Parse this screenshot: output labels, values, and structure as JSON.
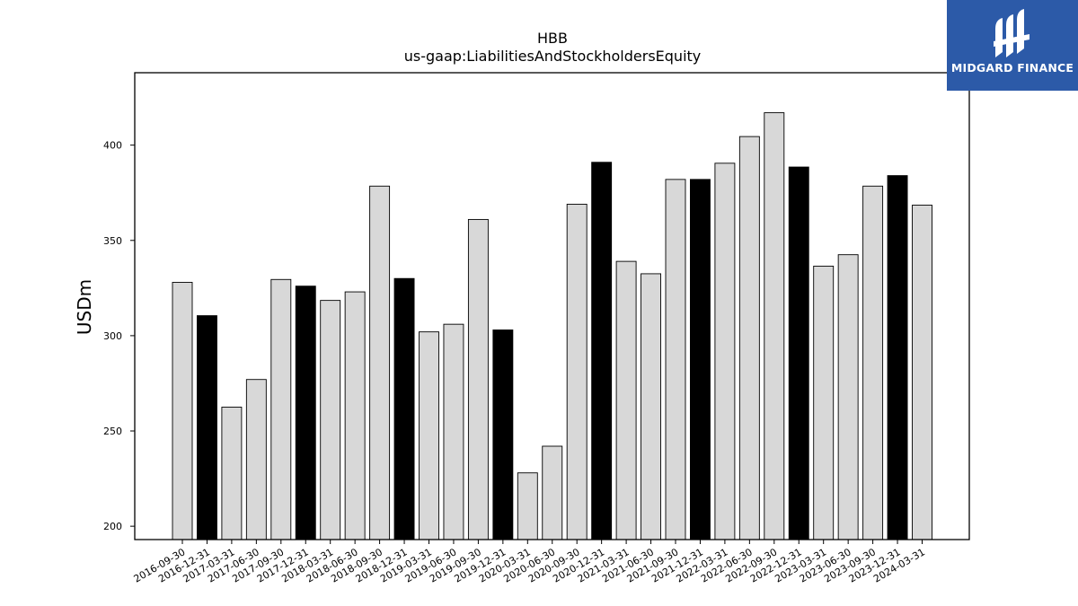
{
  "chart_data": {
    "type": "bar",
    "title": "HBB",
    "subtitle": "us-gaap:LiabilitiesAndStockholdersEquity",
    "xlabel": "",
    "ylabel": "USDm",
    "ylim": [
      193,
      438
    ],
    "yticks": [
      200,
      250,
      300,
      350,
      400
    ],
    "grid": false,
    "categories": [
      "2016-09-30",
      "2016-12-31",
      "2017-03-31",
      "2017-06-30",
      "2017-09-30",
      "2017-12-31",
      "2018-03-31",
      "2018-06-30",
      "2018-09-30",
      "2018-12-31",
      "2019-03-31",
      "2019-06-30",
      "2019-09-30",
      "2019-12-31",
      "2020-03-31",
      "2020-06-30",
      "2020-09-30",
      "2020-12-31",
      "2021-03-31",
      "2021-06-30",
      "2021-09-30",
      "2021-12-31",
      "2022-03-31",
      "2022-06-30",
      "2022-09-30",
      "2022-12-31",
      "2023-03-31",
      "2023-06-30",
      "2023-09-30",
      "2023-12-31",
      "2024-03-31"
    ],
    "values": [
      328,
      310.5,
      262.5,
      277,
      329.5,
      326,
      318.5,
      323,
      378.5,
      330,
      302,
      306,
      361,
      303,
      228,
      242,
      369,
      391,
      339,
      332.5,
      382,
      382,
      390.5,
      404.5,
      417,
      388.5,
      336.5,
      342.5,
      378.5,
      384,
      368.5
    ],
    "colors": {
      "fiscal_year_end": "#000000",
      "quarter": "#d8d8d8",
      "edge": "#000000"
    },
    "highlighted": [
      false,
      true,
      false,
      false,
      false,
      true,
      false,
      false,
      false,
      true,
      false,
      false,
      false,
      true,
      false,
      false,
      false,
      true,
      false,
      false,
      false,
      true,
      false,
      false,
      false,
      true,
      false,
      false,
      false,
      true,
      false
    ]
  },
  "logo": {
    "text": "MIDGARD FINANCE",
    "bg": "#2c5aa8",
    "icon": "midgard-logo-icon"
  }
}
